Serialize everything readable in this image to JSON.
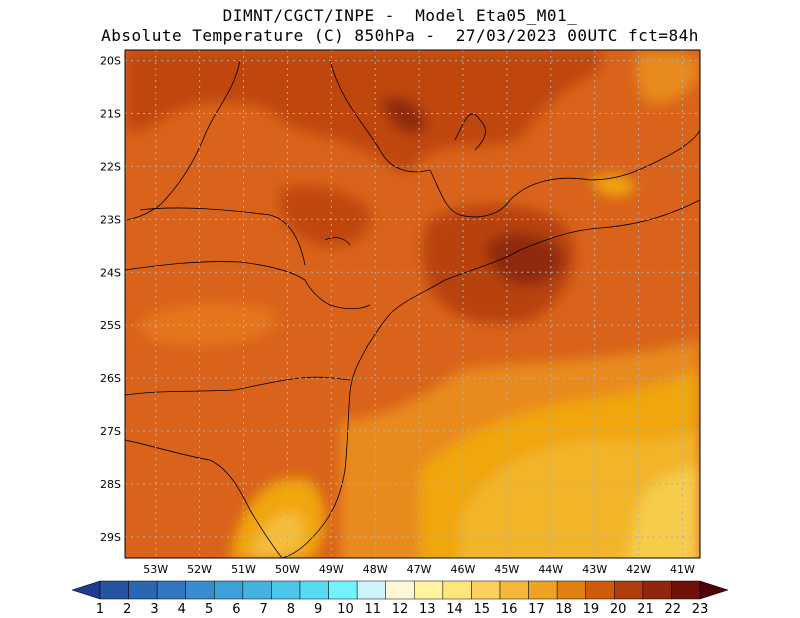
{
  "header": {
    "line1": "DIMNT/CGCT/INPE -  Model Eta05_M01_",
    "line2": "Absolute Temperature (C) 850hPa -  27/03/2023 00UTC fct=84h"
  },
  "map": {
    "lat_labels": [
      "20S",
      "21S",
      "22S",
      "23S",
      "24S",
      "25S",
      "26S",
      "27S",
      "28S",
      "29S"
    ],
    "lon_labels": [
      "53W",
      "52W",
      "51W",
      "50W",
      "49W",
      "48W",
      "47W",
      "46W",
      "45W",
      "44W",
      "43W",
      "42W",
      "41W"
    ],
    "lon_range": [
      -53.7,
      -40.6
    ],
    "lat_range": [
      -29.4,
      -19.8
    ],
    "background_color": "#d9631a",
    "gridlines": true
  },
  "colorbar": {
    "values": [
      "1",
      "2",
      "3",
      "4",
      "5",
      "6",
      "7",
      "8",
      "9",
      "10",
      "11",
      "12",
      "13",
      "14",
      "15",
      "16",
      "17",
      "18",
      "19",
      "20",
      "21",
      "22",
      "23"
    ],
    "colors": [
      "#1f3b8f",
      "#25539f",
      "#2b67b0",
      "#3378bf",
      "#3a8ccc",
      "#3f9fd7",
      "#45b1e0",
      "#4cc6ea",
      "#56dbf3",
      "#72f2fc",
      "#cdf3fb",
      "#fff7d8",
      "#fff3a0",
      "#ffe57a",
      "#fbd05e",
      "#f5b63a",
      "#eda222",
      "#e07f12",
      "#cf5a0c",
      "#b03d0c",
      "#8f260d",
      "#6f120c",
      "#4e0209"
    ]
  }
}
